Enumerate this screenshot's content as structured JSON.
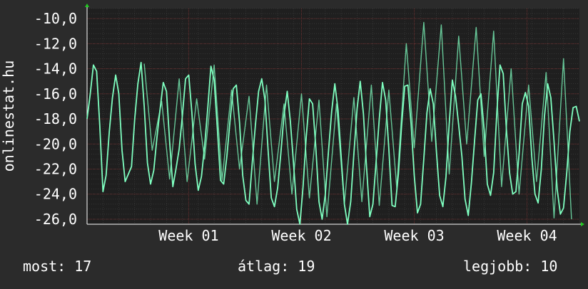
{
  "colors": {
    "background": "#2b2b2b",
    "plot_background": "#1f1f1f",
    "grid_major": "#4a4a4a",
    "grid_minor": "#6a2d2d",
    "line": "#7fffc0",
    "text": "#ffffff",
    "arrow": "#22cc22"
  },
  "chart_data": {
    "type": "line",
    "title": "",
    "xlabel": "",
    "ylabel": "onlinestat.hu",
    "ylim": [
      -26.4,
      -9.2
    ],
    "y_ticks": [
      "-10,0",
      "-12,0",
      "-14,0",
      "-16,0",
      "-18,0",
      "-20,0",
      "-22,0",
      "-24,0",
      "-26,0"
    ],
    "y_tick_values": [
      -10,
      -12,
      -14,
      -16,
      -18,
      -20,
      -22,
      -24,
      -26
    ],
    "x_range": [
      0,
      31
    ],
    "x_ticks": [
      "Week 01",
      "Week 02",
      "Week 03",
      "Week 04"
    ],
    "x_tick_values": [
      6.4,
      13.5,
      20.6,
      27.7
    ],
    "grid": true,
    "series": [
      {
        "name": "",
        "x": [
          0.0,
          0.2,
          0.4,
          0.6,
          0.8,
          1.0,
          1.2,
          1.4,
          1.6,
          1.8,
          2.0,
          2.2,
          2.4,
          2.6,
          2.8,
          3.0,
          3.2,
          3.4,
          3.6,
          3.8,
          4.0,
          4.2,
          4.4,
          4.6,
          4.8,
          5.0,
          5.2,
          5.4,
          5.6,
          5.8,
          6.0,
          6.2,
          6.4,
          6.6,
          6.8,
          7.0,
          7.2,
          7.4,
          7.6,
          7.8,
          8.0,
          8.2,
          8.4,
          8.6,
          8.8,
          9.0,
          9.2,
          9.4,
          9.6,
          9.8,
          10.0,
          10.2,
          10.4,
          10.6,
          10.8,
          11.0,
          11.2,
          11.4,
          11.6,
          11.8,
          12.0,
          12.2,
          12.4,
          12.6,
          12.8,
          13.0,
          13.2,
          13.4,
          13.6,
          13.8,
          14.0,
          14.2,
          14.4,
          14.6,
          14.8,
          15.0,
          15.2,
          15.4,
          15.6,
          15.8,
          16.0,
          16.2,
          16.4,
          16.6,
          16.8,
          17.0,
          17.2,
          17.4,
          17.6,
          17.8,
          18.0,
          18.2,
          18.4,
          18.6,
          18.8,
          19.0,
          19.2,
          19.4,
          19.6,
          19.8,
          20.0,
          20.2,
          20.4,
          20.6,
          20.8,
          21.0,
          21.2,
          21.4,
          21.6,
          21.8,
          22.0,
          22.2,
          22.4,
          22.6,
          22.8,
          23.0,
          23.2,
          23.4,
          23.6,
          23.8,
          24.0,
          24.2,
          24.4,
          24.6,
          24.8,
          25.0,
          25.2,
          25.4,
          25.6,
          25.8,
          26.0,
          26.2,
          26.4,
          26.6,
          26.8,
          27.0,
          27.2,
          27.4,
          27.6,
          27.8,
          28.0,
          28.2,
          28.4,
          28.6,
          28.8,
          29.0,
          29.2,
          29.4,
          29.6,
          29.8,
          30.0,
          30.2,
          30.4,
          30.6,
          30.8,
          31.0
        ],
        "values": [
          -18.0,
          -16.0,
          -13.7,
          -14.2,
          -18.5,
          -23.8,
          -22.5,
          -19.0,
          -16.3,
          -14.5,
          -16.0,
          -20.5,
          -23.0,
          -22.4,
          -21.8,
          -18.0,
          -15.2,
          -13.5,
          -17.0,
          -21.5,
          -23.2,
          -22.1,
          -19.5,
          -17.2,
          -15.1,
          -15.8,
          -19.8,
          -23.4,
          -22.0,
          -20.4,
          -17.8,
          -14.8,
          -14.5,
          -17.5,
          -21.6,
          -23.7,
          -22.6,
          -20.2,
          -17.1,
          -13.8,
          -14.9,
          -18.7,
          -22.9,
          -23.2,
          -21.0,
          -18.2,
          -15.6,
          -15.3,
          -18.3,
          -22.5,
          -24.5,
          -24.8,
          -21.5,
          -18.5,
          -15.8,
          -14.8,
          -16.5,
          -20.5,
          -24.3,
          -25.0,
          -23.5,
          -20.8,
          -17.7,
          -15.8,
          -18.2,
          -21.6,
          -25.2,
          -26.4,
          -23.4,
          -19.4,
          -16.4,
          -16.8,
          -20.2,
          -24.6,
          -26.0,
          -24.0,
          -20.6,
          -17.4,
          -15.2,
          -17.3,
          -21.0,
          -24.8,
          -26.4,
          -24.6,
          -20.8,
          -17.2,
          -15.0,
          -17.6,
          -21.9,
          -25.8,
          -24.8,
          -21.4,
          -18.0,
          -15.1,
          -16.5,
          -20.4,
          -24.9,
          -25.0,
          -22.4,
          -18.6,
          -15.4,
          -15.3,
          -18.4,
          -22.5,
          -25.5,
          -24.8,
          -21.2,
          -17.5,
          -15.6,
          -16.8,
          -20.7,
          -24.1,
          -25.0,
          -22.6,
          -18.4,
          -14.9,
          -16.2,
          -18.5,
          -21.0,
          -24.4,
          -25.7,
          -23.1,
          -19.7,
          -16.5,
          -16.0,
          -18.9,
          -23.2,
          -24.1,
          -22.3,
          -17.4,
          -13.7,
          -14.4,
          -18.8,
          -22.3,
          -24.0,
          -23.8,
          -20.8,
          -16.8,
          -15.9,
          -17.0,
          -21.0,
          -24.0,
          -24.7,
          -22.0,
          -17.8,
          -15.2,
          -16.3,
          -19.8,
          -23.6,
          -25.6,
          -25.1,
          -22.3,
          -19.0,
          -17.1,
          -17.0,
          -18.2
        ],
        "overlay_x": [
          3.6,
          4.1,
          4.7,
          5.2,
          5.8,
          6.3,
          6.9,
          7.4,
          8.0,
          8.5,
          9.1,
          9.6,
          10.2,
          10.7,
          11.3,
          11.8,
          12.4,
          12.9,
          13.5,
          14.0,
          14.6,
          15.1,
          15.7,
          16.2,
          16.8,
          17.3,
          17.9,
          18.4,
          19.0,
          19.5,
          20.1,
          20.6,
          21.2,
          21.7,
          22.3,
          22.8,
          23.4,
          23.9,
          24.5,
          25.0,
          25.6,
          26.1,
          26.7,
          27.2,
          27.8,
          28.3,
          28.9,
          29.4,
          30.0,
          30.5
        ],
        "overlay_values": [
          -13.6,
          -20.5,
          -16.6,
          -22.8,
          -14.8,
          -23.0,
          -16.4,
          -21.2,
          -13.7,
          -22.9,
          -15.7,
          -22.0,
          -16.2,
          -24.8,
          -15.3,
          -23.0,
          -16.8,
          -24.0,
          -16.0,
          -24.3,
          -16.5,
          -25.8,
          -16.8,
          -24.8,
          -16.3,
          -24.6,
          -15.3,
          -24.9,
          -15.7,
          -23.5,
          -12.0,
          -20.3,
          -10.3,
          -19.8,
          -10.5,
          -22.4,
          -11.4,
          -20.0,
          -10.7,
          -21.0,
          -11.0,
          -23.4,
          -14.0,
          -24.0,
          -15.3,
          -23.0,
          -14.3,
          -25.9,
          -13.2,
          -26.0
        ]
      }
    ]
  },
  "footer": {
    "current": "most: 17",
    "average": "átlag: 19",
    "best": "legjobb: 10"
  }
}
